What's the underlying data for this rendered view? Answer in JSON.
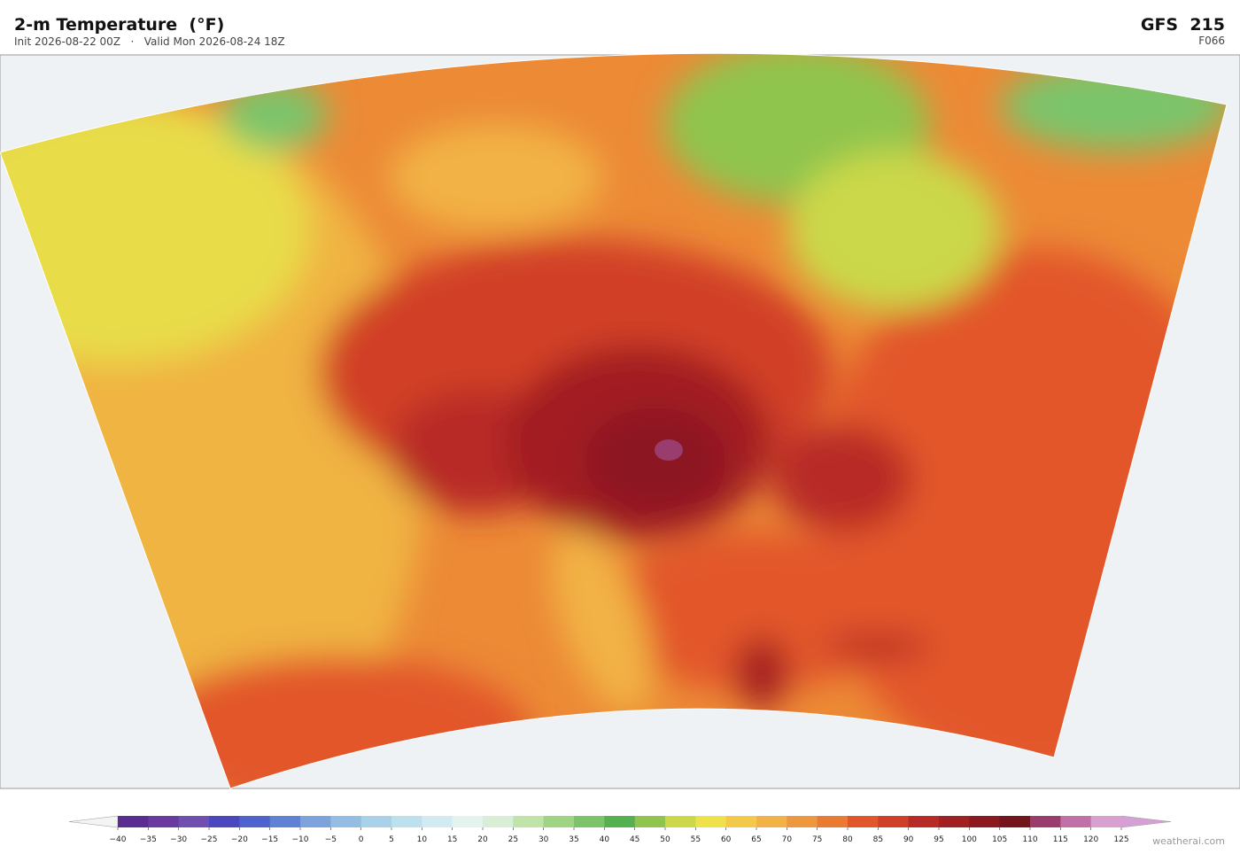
{
  "header": {
    "title": "2-m Temperature  (°F)",
    "subtitle": "Init 2026-08-22 00Z   ·   Valid Mon 2026-08-24 18Z",
    "model": "GFS  215",
    "forecast_hour": "F066"
  },
  "colorbar": {
    "labels": [
      "−40",
      "−35",
      "−30",
      "−25",
      "−20",
      "−15",
      "−10",
      "−5",
      "0",
      "5",
      "10",
      "15",
      "20",
      "25",
      "30",
      "35",
      "40",
      "45",
      "50",
      "55",
      "60",
      "65",
      "70",
      "75",
      "80",
      "85",
      "90",
      "95",
      "100",
      "105",
      "110",
      "115",
      "120",
      "125"
    ],
    "colors": [
      "#5a2d91",
      "#6a3a9e",
      "#6f4fb0",
      "#4a47bf",
      "#4f63cf",
      "#5f82d6",
      "#7da2dc",
      "#93bde3",
      "#a9d2ea",
      "#bde0ef",
      "#d2ebf3",
      "#e3f3f0",
      "#d8efd6",
      "#bfe3a8",
      "#9fd485",
      "#7cc46a",
      "#55b04f",
      "#8fc44e",
      "#cbd84a",
      "#eee14a",
      "#f3c94a",
      "#f2b245",
      "#ef973d",
      "#eb7a32",
      "#e2572a",
      "#d13f28",
      "#b82a25",
      "#a21f22",
      "#8c1820",
      "#74141d",
      "#9a3d6e",
      "#c071a8",
      "#d99fcf"
    ],
    "under_color": "#f4f4f4",
    "over_color": "#d6a0d6"
  },
  "footer": {
    "credit": "weatherai.com"
  }
}
